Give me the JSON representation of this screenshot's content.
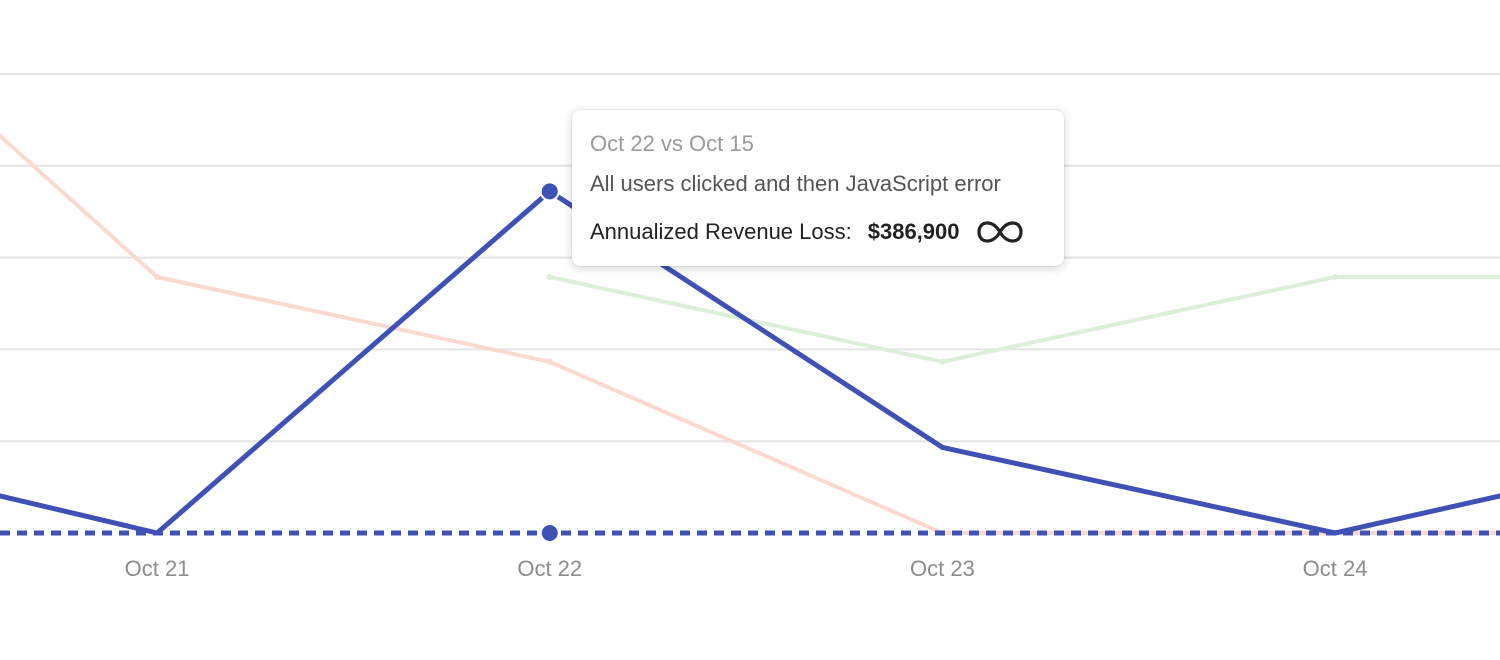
{
  "chart_data": {
    "type": "line",
    "categories": [
      "Oct 21",
      "Oct 22",
      "Oct 23",
      "Oct 24"
    ],
    "x_range": [
      20.6,
      24.42
    ],
    "y_range": [
      0,
      5.2
    ],
    "grid": true,
    "series": [
      {
        "key": "primary",
        "color": "#3f51b5",
        "style": "solid",
        "points": [
          [
            20.6,
            0.42
          ],
          [
            21,
            0
          ],
          [
            22,
            3.87
          ],
          [
            23,
            0.97
          ],
          [
            24,
            0
          ],
          [
            24.42,
            0.42
          ]
        ]
      },
      {
        "key": "baseline",
        "color": "#3f51b5",
        "style": "dashed",
        "points": [
          [
            20.6,
            0
          ],
          [
            24.42,
            0
          ]
        ]
      },
      {
        "key": "faded-orange",
        "color": "#fbd9cf",
        "style": "solid",
        "points": [
          [
            20.6,
            4.5
          ],
          [
            21,
            2.9
          ],
          [
            22,
            1.94
          ],
          [
            23,
            0
          ],
          [
            24,
            0
          ],
          [
            24.42,
            0
          ]
        ]
      },
      {
        "key": "faded-green",
        "color": "#dcefd9",
        "style": "solid",
        "points": [
          [
            22,
            2.9
          ],
          [
            23,
            1.94
          ],
          [
            24,
            2.9
          ],
          [
            24.42,
            2.9
          ]
        ]
      }
    ],
    "highlight": {
      "x": 22,
      "points": [
        {
          "series": "primary",
          "y": 3.87
        },
        {
          "series": "baseline",
          "y": 0
        }
      ]
    }
  },
  "tooltip": {
    "title": "Oct 22 vs Oct 15",
    "series_label": "All users clicked and then JavaScript error",
    "metric_label": "Annualized Revenue Loss:",
    "metric_value": "$386,900",
    "icon": "infinity-link-icon"
  }
}
